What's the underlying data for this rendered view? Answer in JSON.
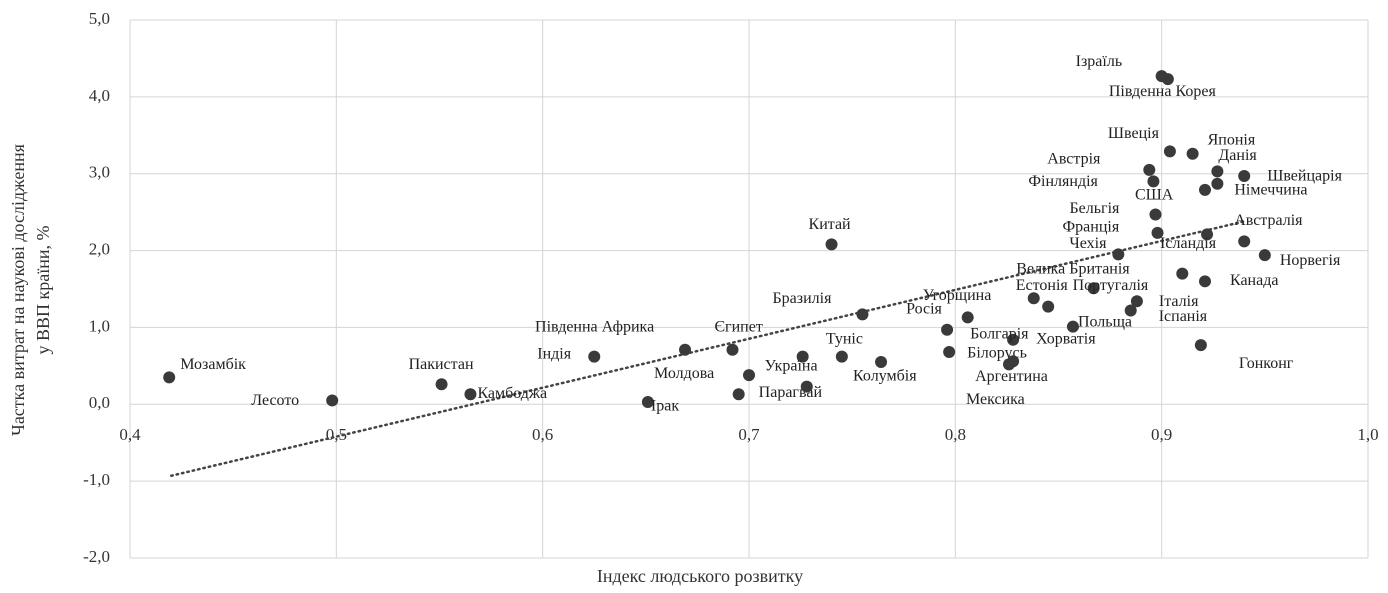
{
  "chart_data": {
    "type": "scatter",
    "x_label": "Індекс людського розвитку",
    "y_label": [
      "Частка витрат на наукові дослідження",
      "у ВВП країни, %"
    ],
    "color": "#3a3a3a",
    "grid": true,
    "labels": [
      "Мозамбік",
      "Лесото",
      "Пакистан",
      "Камбоджа",
      "Індія",
      "Південна Африка",
      "Єгипет",
      "Молдова",
      "Ірак",
      "Парагвай",
      null,
      "Україна",
      "Туніс",
      "Колумбія",
      "Китай",
      "Бразилія",
      "Росія",
      "Угорщина",
      "Білорусь",
      "Болгарія",
      "Хорватія",
      "Аргентина",
      "Мексика",
      "Естонія",
      "Польща",
      "Португалія",
      "Велика Британія",
      "Італія",
      "Іспанія",
      "Чехія",
      "Ісландія",
      "Канада",
      "Гонконг",
      "Австралія",
      "Норвегія",
      "Франція",
      "Бельгія",
      "США",
      "Фінляндія",
      "Австрія",
      "Швеція",
      "Японія",
      "Данія",
      "Швейцарія",
      "Німеччина",
      "Ізраїль",
      "Південна Корея"
    ],
    "x": [
      0.419,
      0.498,
      0.551,
      0.565,
      0.625,
      0.669,
      0.692,
      0.7,
      0.651,
      0.695,
      0.728,
      0.726,
      0.745,
      0.764,
      0.74,
      0.755,
      0.796,
      0.806,
      0.797,
      0.828,
      0.845,
      0.828,
      0.826,
      0.838,
      0.857,
      0.867,
      0.91,
      0.888,
      0.885,
      0.879,
      0.922,
      0.921,
      0.919,
      0.94,
      0.95,
      0.898,
      0.897,
      0.921,
      0.896,
      0.894,
      0.904,
      0.915,
      0.927,
      0.94,
      0.927,
      0.9,
      0.903
    ],
    "values": [
      0.35,
      0.05,
      0.26,
      0.13,
      0.62,
      0.71,
      0.71,
      0.38,
      0.03,
      0.13,
      0.23,
      0.62,
      0.62,
      0.55,
      2.08,
      1.17,
      0.97,
      1.13,
      0.68,
      0.84,
      1.27,
      0.56,
      0.52,
      1.38,
      1.01,
      1.51,
      1.7,
      1.34,
      1.22,
      1.95,
      2.21,
      1.6,
      0.77,
      2.12,
      1.94,
      2.23,
      2.47,
      2.79,
      2.9,
      3.05,
      3.29,
      3.26,
      3.03,
      2.97,
      2.87,
      4.27,
      4.23
    ],
    "trendline": {
      "x": [
        0.42,
        0.94
      ],
      "y": [
        -0.93,
        2.38
      ]
    },
    "xlim": [
      0.4,
      1.0
    ],
    "xticks": [
      {
        "value": 0.4,
        "label": "0,4"
      },
      {
        "value": 0.5,
        "label": "0,5"
      },
      {
        "value": 0.6,
        "label": "0,6"
      },
      {
        "value": 0.7,
        "label": "0,7"
      },
      {
        "value": 0.8,
        "label": "0,8"
      },
      {
        "value": 0.9,
        "label": "0,9"
      },
      {
        "value": 1.0,
        "label": "1,0"
      }
    ],
    "ylim": [
      -2,
      5
    ],
    "yticks": [
      {
        "value": -2,
        "label": "-2,0"
      },
      {
        "value": -1,
        "label": "-1,0"
      },
      {
        "value": 0,
        "label": "0,0"
      },
      {
        "value": 1,
        "label": "1,0"
      },
      {
        "value": 2,
        "label": "2,0"
      },
      {
        "value": 3,
        "label": "3,0"
      },
      {
        "value": 4,
        "label": "4,0"
      },
      {
        "value": 5,
        "label": "5,0"
      }
    ]
  }
}
